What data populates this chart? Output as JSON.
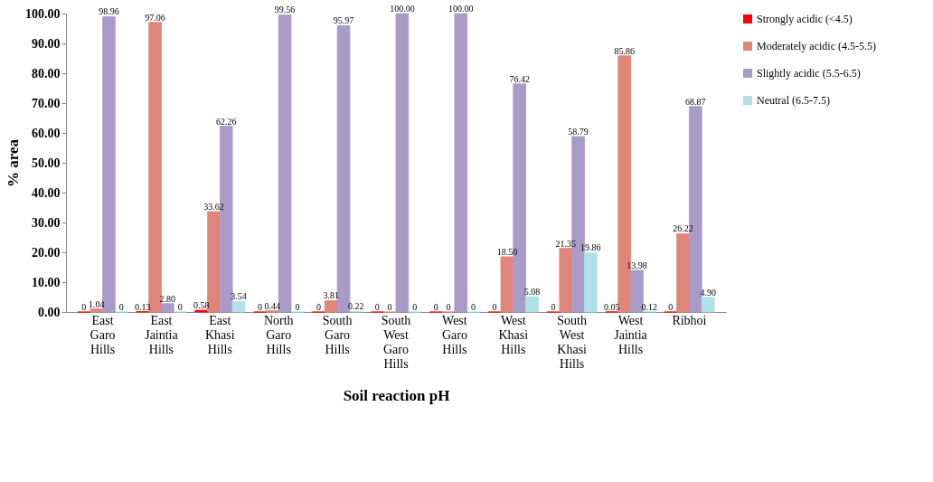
{
  "chart_data": {
    "type": "bar",
    "xlabel": "Soil reaction pH",
    "ylabel": "% area",
    "categories": [
      "East Garo Hills",
      "East Jaintia Hills",
      "East Khasi Hills",
      "North Garo Hills",
      "South Garo Hills",
      "South West Garo Hills",
      "West Garo Hills",
      "West Khasi Hills",
      "South West Khasi Hills",
      "West Jaintia Hills",
      "Ribhoi"
    ],
    "series": [
      {
        "name": "Strongly acidic (<4.5)",
        "color": "#ff0000",
        "values": [
          0,
          0.13,
          0.58,
          0,
          0,
          0,
          0,
          0,
          0,
          0.05,
          0
        ],
        "value_labels": [
          "0",
          "0.13",
          "0.58",
          "0",
          "0",
          "0",
          "0",
          "0",
          "0",
          "0.05",
          "0"
        ]
      },
      {
        "name": "Moderately acidic (4.5-5.5)",
        "color": "#e0857a",
        "values": [
          1.04,
          97.06,
          33.62,
          0.44,
          3.81,
          0,
          0,
          18.5,
          21.35,
          85.86,
          26.22
        ],
        "value_labels": [
          "1.04",
          "97.06",
          "33.62",
          "0.44",
          "3.81",
          "0",
          "0",
          "18.50",
          "21.35",
          "85.86",
          "26.22"
        ]
      },
      {
        "name": "Slightly acidic (5.5-6.5)",
        "color": "#a99bc8",
        "values": [
          98.96,
          2.8,
          62.26,
          99.56,
          95.97,
          100,
          100,
          76.42,
          58.79,
          13.98,
          68.87
        ],
        "value_labels": [
          "98.96",
          "2.80",
          "62.26",
          "99.56",
          "95.97",
          "100.00",
          "100.00",
          "76.42",
          "58.79",
          "13.98",
          "68.87"
        ]
      },
      {
        "name": "Neutral (6.5-7.5)",
        "color": "#b0e0e8",
        "values": [
          0,
          0,
          3.54,
          0,
          0.22,
          0,
          0,
          5.08,
          19.86,
          0.12,
          4.9
        ],
        "value_labels": [
          "0",
          "0",
          "3.54",
          "0",
          "0.22",
          "0",
          "0",
          "5.08",
          "19.86",
          "0.12",
          "4.90"
        ]
      }
    ],
    "ylim": [
      0,
      100
    ],
    "yticks": [
      {
        "value": 0,
        "label": "0.00"
      },
      {
        "value": 10,
        "label": "10.00"
      },
      {
        "value": 20,
        "label": "20.00"
      },
      {
        "value": 30,
        "label": "30.00"
      },
      {
        "value": 40,
        "label": "40.00"
      },
      {
        "value": 50,
        "label": "50.00"
      },
      {
        "value": 60,
        "label": "60.00"
      },
      {
        "value": 70,
        "label": "70.00"
      },
      {
        "value": 80,
        "label": "80.00"
      },
      {
        "value": 90,
        "label": "90.00"
      },
      {
        "value": 100,
        "label": "100.00"
      }
    ],
    "grid": false,
    "legend": "top right"
  }
}
